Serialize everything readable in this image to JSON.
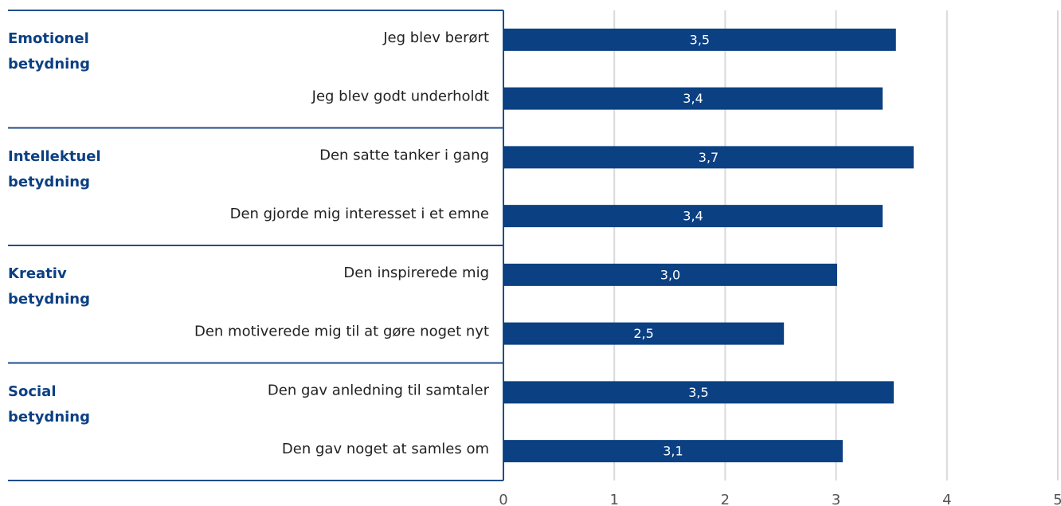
{
  "chart_data": {
    "type": "barh",
    "groups": [
      "Emotionel betydning",
      "Intellektuel betydning",
      "Kreativ betydning",
      "Social betydning"
    ],
    "categories": [
      "Jeg blev berørt",
      "Jeg blev godt underholdt",
      "Den satte tanker i gang",
      "Den gjorde mig interesset i et emne",
      "Den inspirerede mig",
      "Den motiverede mig til at gøre noget nyt",
      "Den gav anledning til samtaler",
      "Den gav noget at samles om"
    ],
    "values": [
      3.54,
      3.42,
      3.7,
      3.42,
      3.01,
      2.53,
      3.52,
      3.06
    ],
    "value_labels": [
      "3,5",
      "3,4",
      "3,7",
      "3,4",
      "3,0",
      "2,5",
      "3,5",
      "3,1"
    ],
    "color": "#0b4083",
    "xlim": [
      0,
      5
    ],
    "xticks": [
      0,
      1,
      2,
      3,
      4,
      5
    ],
    "grid": true
  }
}
